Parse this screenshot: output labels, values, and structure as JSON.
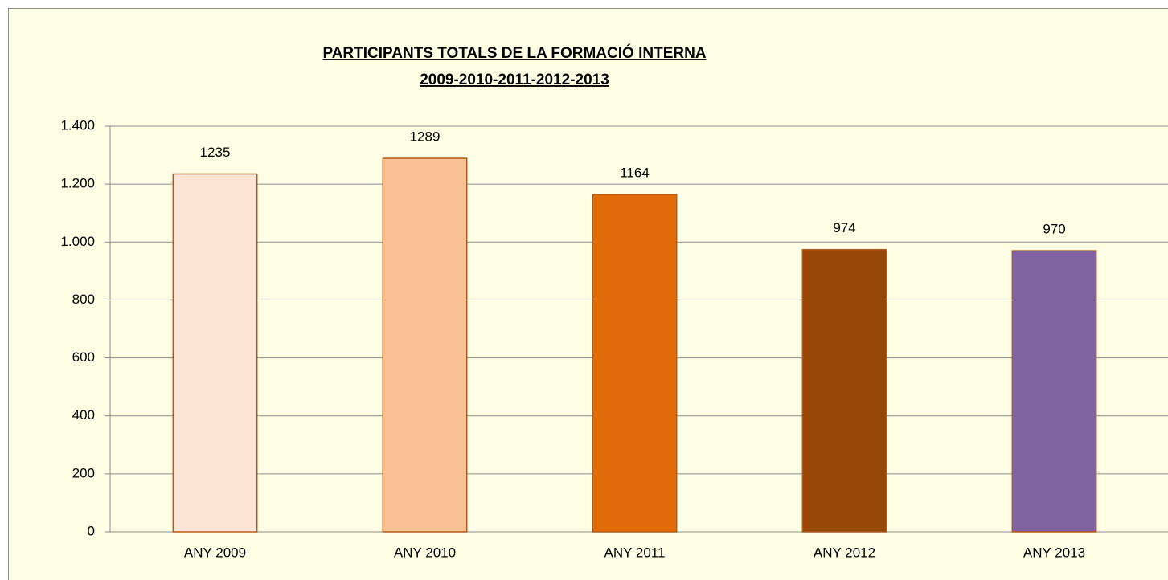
{
  "chart_data": {
    "type": "bar",
    "title": "PARTICIPANTS  TOTALS  DE LA FORMACIÓ INTERNA",
    "subtitle": "2009-2010-2011-2012-2013",
    "categories": [
      "ANY 2009",
      "ANY 2010",
      "ANY 2011",
      "ANY 2012",
      "ANY 2013"
    ],
    "values": [
      1235,
      1289,
      1164,
      974,
      970
    ],
    "colors": [
      "#fde5d5",
      "#f9c194",
      "#e36c0a",
      "#974706",
      "#8064a2"
    ],
    "ylim": [
      0,
      1400
    ],
    "yticks": [
      0,
      200,
      400,
      600,
      800,
      {
        "value": 1000,
        "label": "1.000"
      },
      {
        "value": 1200,
        "label": "1.200"
      },
      {
        "value": 1400,
        "label": "1.400"
      }
    ],
    "grid": true
  }
}
